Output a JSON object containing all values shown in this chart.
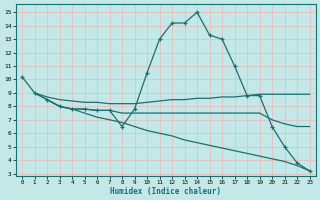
{
  "background_color": "#c4e8e8",
  "grid_color": "#e8b8b8",
  "line_color": "#1a7070",
  "xlabel": "Humidex (Indice chaleur)",
  "xlim": [
    -0.5,
    23.5
  ],
  "ylim": [
    2.8,
    15.6
  ],
  "xticks": [
    0,
    1,
    2,
    3,
    4,
    5,
    6,
    7,
    8,
    9,
    10,
    11,
    12,
    13,
    14,
    15,
    16,
    17,
    18,
    19,
    20,
    21,
    22,
    23
  ],
  "yticks": [
    3,
    4,
    5,
    6,
    7,
    8,
    9,
    10,
    11,
    12,
    13,
    14,
    15
  ],
  "line1_x": [
    0,
    1,
    2,
    3,
    4,
    5,
    6,
    7,
    8,
    9,
    10,
    11,
    12,
    13,
    14,
    15,
    16,
    17,
    18,
    19,
    20,
    21,
    22,
    23
  ],
  "line1_y": [
    10.2,
    9.0,
    8.5,
    8.0,
    7.8,
    7.8,
    7.7,
    7.7,
    6.5,
    7.8,
    10.5,
    13.0,
    14.2,
    14.2,
    15.0,
    13.3,
    13.0,
    11.0,
    8.8,
    8.8,
    6.5,
    5.0,
    3.8,
    3.2
  ],
  "line2_x": [
    1,
    2,
    3,
    4,
    5,
    6,
    7,
    8,
    9,
    10,
    11,
    12,
    13,
    14,
    15,
    16,
    17,
    18,
    19,
    20,
    21,
    22,
    23
  ],
  "line2_y": [
    9.0,
    8.7,
    8.5,
    8.4,
    8.3,
    8.3,
    8.2,
    8.2,
    8.2,
    8.3,
    8.4,
    8.5,
    8.5,
    8.6,
    8.6,
    8.7,
    8.7,
    8.8,
    8.9,
    8.9,
    8.9,
    8.9,
    8.9
  ],
  "line3_x": [
    1,
    2,
    3,
    4,
    5,
    6,
    7,
    8,
    9,
    10,
    11,
    12,
    13,
    14,
    15,
    16,
    17,
    18,
    19,
    20,
    21,
    22,
    23
  ],
  "line3_y": [
    9.0,
    8.5,
    8.0,
    7.8,
    7.8,
    7.7,
    7.7,
    7.5,
    7.5,
    7.5,
    7.5,
    7.5,
    7.5,
    7.5,
    7.5,
    7.5,
    7.5,
    7.5,
    7.5,
    7.0,
    6.7,
    6.5,
    6.5
  ],
  "line4_x": [
    2,
    3,
    4,
    5,
    6,
    7,
    8,
    9,
    10,
    11,
    12,
    13,
    14,
    15,
    16,
    17,
    18,
    19,
    20,
    21,
    22,
    23
  ],
  "line4_y": [
    8.5,
    8.0,
    7.8,
    7.5,
    7.2,
    7.0,
    6.8,
    6.5,
    6.2,
    6.0,
    5.8,
    5.5,
    5.3,
    5.1,
    4.9,
    4.7,
    4.5,
    4.3,
    4.1,
    3.9,
    3.6,
    3.2
  ]
}
